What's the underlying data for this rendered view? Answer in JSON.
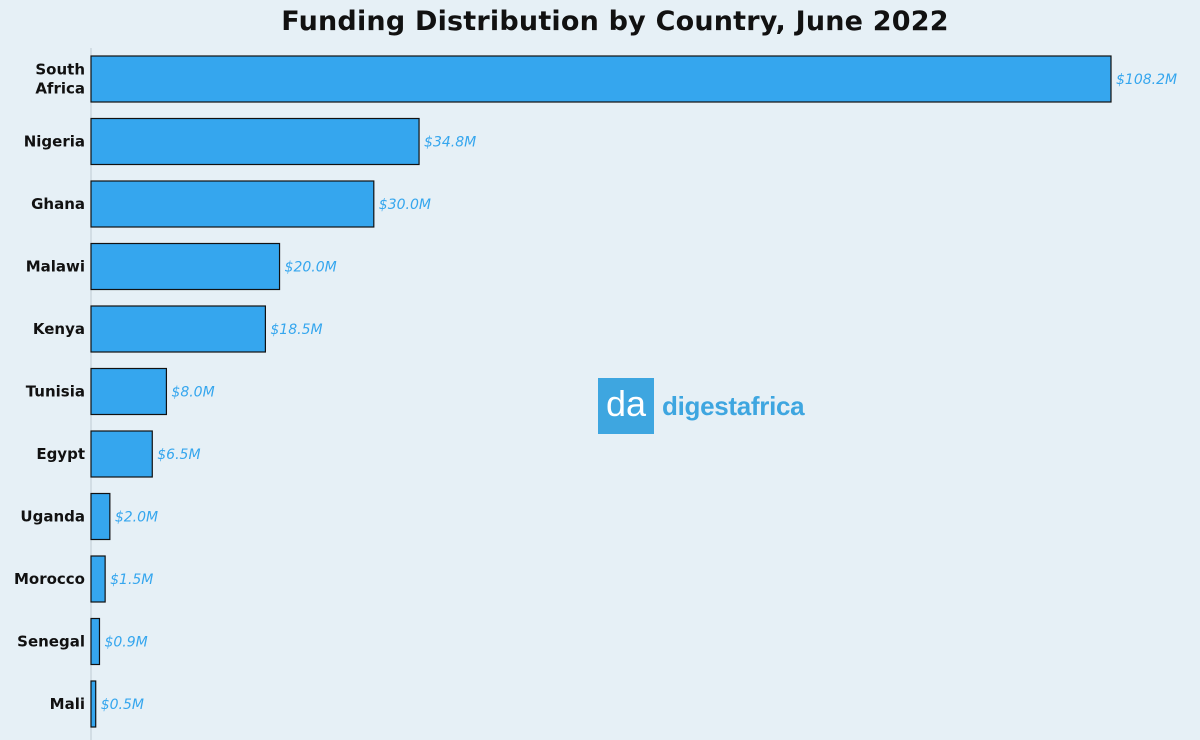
{
  "chart_data": {
    "type": "bar",
    "orientation": "horizontal",
    "title": "Funding Distribution by Country, June 2022",
    "categories": [
      "South Africa",
      "Nigeria",
      "Ghana",
      "Malawi",
      "Kenya",
      "Tunisia",
      "Egypt",
      "Uganda",
      "Morocco",
      "Senegal",
      "Mali"
    ],
    "values": [
      108.2,
      34.8,
      30.0,
      20.0,
      18.5,
      8.0,
      6.5,
      2.0,
      1.5,
      0.9,
      0.5
    ],
    "value_labels": [
      "$108.2M",
      "$34.8M",
      "$30.0M",
      "$20.0M",
      "$18.5M",
      "$8.0M",
      "$6.5M",
      "$2.0M",
      "$1.5M",
      "$0.9M",
      "$0.5M"
    ],
    "unit": "$M",
    "xlim": [
      0,
      108.2
    ],
    "grid": false,
    "legend": "none"
  },
  "colors": {
    "background": "#e6f0f6",
    "bar_fill": "#35a6ee",
    "bar_stroke": "#111111",
    "value_label": "#35a6ee",
    "logo": "#3ea6e0"
  },
  "logo": {
    "mark": "da",
    "text": "digestafrica"
  }
}
